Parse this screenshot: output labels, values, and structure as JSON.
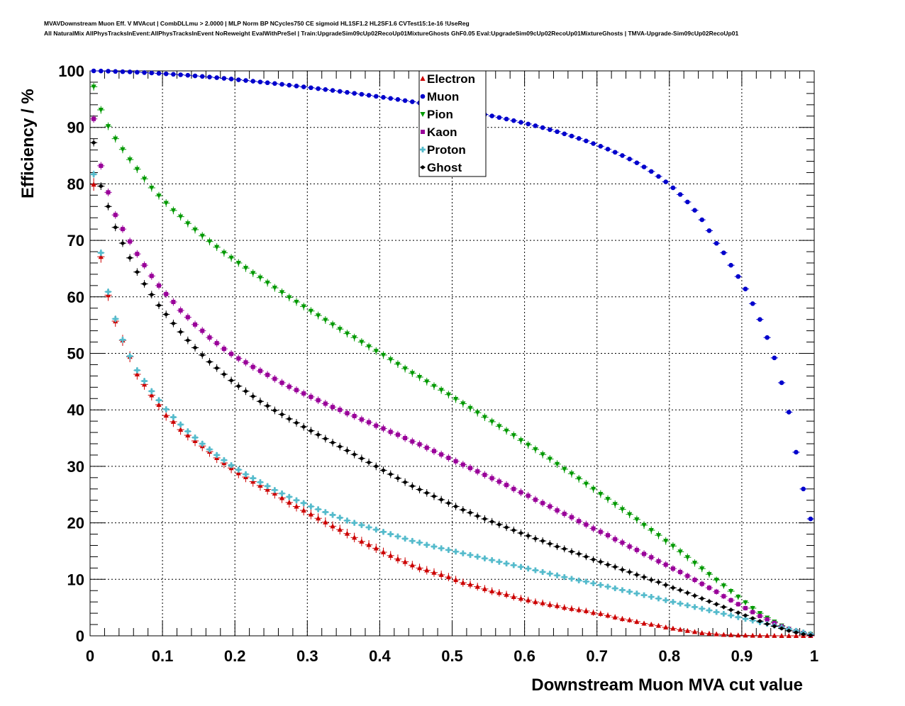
{
  "header": {
    "line1": "MVAVDownstream Muon Eff. V MVAcut | CombDLLmu > 2.0000 | MLP Norm BP NCycles750 CE sigmoid HL1SF1.2 HL2SF1.6 CVTest15:1e-16 !UseReg",
    "line2": "All NaturalMix AllPhysTracksInEvent:AllPhysTracksInEvent NoReweight EvalWithPreSel | Train:UpgradeSim09cUp02RecoUp01MixtureGhosts GhF0.05 Eval:UpgradeSim09cUp02RecoUp01MixtureGhosts | TMVA-Upgrade-Sim09cUp02RecoUp01"
  },
  "chart_data": {
    "type": "scatter",
    "xlabel": "Downstream Muon MVA cut value",
    "ylabel": "Efficiency / %",
    "xlim": [
      0,
      1
    ],
    "ylim": [
      0,
      100
    ],
    "x_ticks": [
      "0",
      "0.1",
      "0.2",
      "0.3",
      "0.4",
      "0.5",
      "0.6",
      "0.7",
      "0.8",
      "0.9",
      "1"
    ],
    "y_ticks": [
      "0",
      "10",
      "20",
      "30",
      "40",
      "50",
      "60",
      "70",
      "80",
      "90",
      "100"
    ],
    "grid": true,
    "legend_position": "top-center",
    "x": [
      0.005,
      0.015,
      0.025,
      0.035,
      0.045,
      0.055,
      0.065,
      0.075,
      0.085,
      0.095,
      0.105,
      0.115,
      0.125,
      0.135,
      0.145,
      0.155,
      0.165,
      0.175,
      0.185,
      0.195,
      0.205,
      0.215,
      0.225,
      0.235,
      0.245,
      0.255,
      0.265,
      0.275,
      0.285,
      0.295,
      0.305,
      0.315,
      0.325,
      0.335,
      0.345,
      0.355,
      0.365,
      0.375,
      0.385,
      0.395,
      0.405,
      0.415,
      0.425,
      0.435,
      0.445,
      0.455,
      0.465,
      0.475,
      0.485,
      0.495,
      0.505,
      0.515,
      0.525,
      0.535,
      0.545,
      0.555,
      0.565,
      0.575,
      0.585,
      0.595,
      0.605,
      0.615,
      0.625,
      0.635,
      0.645,
      0.655,
      0.665,
      0.675,
      0.685,
      0.695,
      0.705,
      0.715,
      0.725,
      0.735,
      0.745,
      0.755,
      0.765,
      0.775,
      0.785,
      0.795,
      0.805,
      0.815,
      0.825,
      0.835,
      0.845,
      0.855,
      0.865,
      0.875,
      0.885,
      0.895,
      0.905,
      0.915,
      0.925,
      0.935,
      0.945,
      0.955,
      0.965,
      0.975,
      0.985,
      0.995
    ],
    "series": [
      {
        "name": "Electron",
        "color": "#cc0000",
        "marker": "triangle-up",
        "values": [
          79.9,
          67.1,
          60.3,
          55.7,
          52.3,
          49.4,
          46.3,
          44.5,
          42.6,
          40.9,
          39.0,
          37.9,
          36.5,
          35.5,
          34.5,
          33.6,
          32.6,
          31.5,
          30.6,
          29.7,
          28.8,
          28.1,
          27.3,
          26.6,
          25.9,
          25.2,
          24.4,
          23.6,
          22.9,
          22.2,
          21.5,
          20.8,
          20.1,
          19.4,
          18.8,
          18.1,
          17.4,
          16.7,
          16.1,
          15.5,
          14.8,
          14.2,
          13.6,
          13.1,
          12.5,
          12.0,
          11.6,
          11.2,
          10.8,
          10.4,
          9.9,
          9.4,
          9.1,
          8.7,
          8.3,
          7.9,
          7.6,
          7.3,
          6.9,
          6.6,
          6.3,
          6.0,
          5.8,
          5.5,
          5.3,
          5.0,
          4.8,
          4.6,
          4.4,
          4.1,
          3.9,
          3.6,
          3.3,
          3.0,
          2.8,
          2.5,
          2.2,
          2.0,
          1.8,
          1.5,
          1.3,
          1.1,
          0.9,
          0.7,
          0.5,
          0.4,
          0.3,
          0.2,
          0.15,
          0.1,
          0.08,
          0.05,
          0.03,
          0.02,
          0.01,
          0.0,
          0.0,
          0.0,
          0.0,
          0.0
        ]
      },
      {
        "name": "Muon",
        "color": "#0000cc",
        "marker": "circle",
        "values": [
          100.0,
          99.98,
          99.95,
          99.9,
          99.86,
          99.82,
          99.76,
          99.7,
          99.63,
          99.56,
          99.48,
          99.4,
          99.31,
          99.22,
          99.12,
          99.02,
          98.91,
          98.8,
          98.68,
          98.56,
          98.43,
          98.3,
          98.17,
          98.04,
          97.9,
          97.76,
          97.62,
          97.47,
          97.32,
          97.17,
          97.02,
          96.86,
          96.7,
          96.54,
          96.37,
          96.2,
          96.03,
          95.86,
          95.68,
          95.5,
          95.32,
          95.13,
          94.94,
          94.74,
          94.54,
          94.34,
          94.13,
          93.92,
          93.7,
          93.48,
          93.26,
          93.02,
          92.78,
          92.54,
          92.28,
          92.02,
          91.75,
          91.48,
          91.19,
          90.9,
          90.6,
          90.28,
          89.95,
          89.6,
          89.24,
          88.86,
          88.46,
          88.04,
          87.6,
          87.14,
          86.66,
          86.14,
          85.6,
          85.02,
          84.4,
          83.73,
          83.0,
          82.2,
          81.32,
          80.36,
          79.3,
          78.12,
          76.8,
          75.32,
          73.64,
          71.72,
          69.48,
          67.8,
          65.6,
          63.6,
          61.4,
          58.8,
          56.0,
          52.8,
          49.2,
          44.8,
          39.6,
          32.5,
          26.0,
          20.7
        ]
      },
      {
        "name": "Pion",
        "color": "#009900",
        "marker": "triangle-down",
        "values": [
          97.2,
          93.1,
          90.2,
          88.0,
          86.1,
          84.3,
          82.6,
          80.9,
          79.3,
          77.9,
          76.6,
          75.3,
          74.2,
          73.0,
          71.9,
          70.8,
          69.8,
          68.8,
          67.8,
          66.9,
          66.0,
          65.1,
          64.2,
          63.4,
          62.5,
          61.6,
          60.8,
          59.9,
          59.1,
          58.3,
          57.5,
          56.7,
          55.9,
          55.1,
          54.3,
          53.5,
          52.8,
          52.0,
          51.2,
          50.4,
          49.7,
          48.9,
          48.1,
          47.3,
          46.5,
          45.8,
          45.0,
          44.2,
          43.5,
          42.7,
          41.9,
          41.1,
          40.3,
          39.5,
          38.7,
          37.9,
          37.1,
          36.3,
          35.5,
          34.6,
          33.8,
          33.0,
          32.1,
          31.3,
          30.4,
          29.5,
          28.7,
          27.8,
          26.9,
          26.0,
          25.1,
          24.2,
          23.3,
          22.4,
          21.5,
          20.6,
          19.6,
          18.7,
          17.8,
          16.8,
          15.9,
          14.9,
          13.9,
          12.9,
          11.9,
          10.9,
          9.9,
          8.9,
          7.9,
          6.9,
          5.9,
          4.9,
          4.0,
          3.2,
          2.5,
          1.8,
          1.2,
          0.8,
          0.5,
          0.3
        ]
      },
      {
        "name": "Kaon",
        "color": "#990099",
        "marker": "square",
        "values": [
          91.5,
          83.2,
          78.5,
          74.5,
          72.0,
          69.8,
          67.6,
          65.6,
          63.7,
          62.0,
          60.5,
          59.1,
          57.6,
          56.4,
          55.1,
          54.0,
          52.8,
          51.8,
          50.8,
          49.9,
          49.1,
          48.4,
          47.6,
          46.9,
          46.2,
          45.5,
          44.8,
          44.1,
          43.5,
          42.9,
          42.3,
          41.7,
          41.1,
          40.5,
          40.0,
          39.4,
          38.9,
          38.3,
          37.8,
          37.2,
          36.7,
          36.1,
          35.6,
          35.0,
          34.4,
          33.9,
          33.3,
          32.7,
          32.1,
          31.5,
          30.9,
          30.3,
          29.7,
          29.1,
          28.5,
          27.9,
          27.3,
          26.7,
          26.0,
          25.4,
          24.8,
          24.1,
          23.5,
          22.9,
          22.2,
          21.6,
          21.0,
          20.3,
          19.7,
          19.0,
          18.4,
          17.8,
          17.1,
          16.5,
          15.8,
          15.2,
          14.5,
          13.9,
          13.2,
          12.6,
          11.9,
          11.3,
          10.6,
          9.9,
          9.2,
          8.5,
          7.8,
          7.0,
          6.3,
          5.6,
          4.9,
          4.2,
          3.5,
          2.9,
          2.3,
          1.7,
          1.2,
          0.8,
          0.5,
          0.2
        ]
      },
      {
        "name": "Proton",
        "color": "#55bbcc",
        "marker": "cross",
        "values": [
          81.7,
          67.8,
          60.9,
          56.1,
          52.4,
          49.5,
          47.0,
          45.1,
          43.3,
          41.7,
          40.1,
          38.7,
          37.4,
          36.2,
          35.1,
          34.0,
          33.0,
          32.0,
          31.1,
          30.2,
          29.4,
          28.6,
          27.9,
          27.2,
          26.5,
          25.8,
          25.2,
          24.6,
          24.0,
          23.5,
          22.9,
          22.4,
          21.9,
          21.4,
          20.9,
          20.4,
          20.0,
          19.6,
          19.2,
          18.8,
          18.4,
          18.0,
          17.6,
          17.2,
          16.8,
          16.5,
          16.1,
          15.8,
          15.5,
          15.2,
          14.9,
          14.6,
          14.3,
          14.0,
          13.7,
          13.4,
          13.1,
          12.8,
          12.5,
          12.2,
          11.9,
          11.6,
          11.3,
          11.0,
          10.7,
          10.4,
          10.1,
          9.8,
          9.6,
          9.3,
          9.0,
          8.7,
          8.4,
          8.1,
          7.8,
          7.5,
          7.2,
          6.9,
          6.6,
          6.3,
          6.0,
          5.7,
          5.4,
          5.1,
          4.8,
          4.5,
          4.2,
          3.9,
          3.6,
          3.3,
          3.0,
          2.7,
          2.4,
          2.1,
          1.8,
          1.5,
          1.2,
          0.9,
          0.6,
          0.3
        ]
      },
      {
        "name": "Ghost",
        "color": "#000000",
        "marker": "diamond",
        "values": [
          87.3,
          79.6,
          76.0,
          72.3,
          69.5,
          66.9,
          64.4,
          62.3,
          60.4,
          58.5,
          56.9,
          55.3,
          53.8,
          52.3,
          51.0,
          49.7,
          48.5,
          47.4,
          46.3,
          45.2,
          44.2,
          43.3,
          42.4,
          41.5,
          40.7,
          39.9,
          39.2,
          38.4,
          37.7,
          37.0,
          36.3,
          35.6,
          34.9,
          34.2,
          33.5,
          32.8,
          32.1,
          31.4,
          30.7,
          30.0,
          29.3,
          28.6,
          27.9,
          27.2,
          26.5,
          25.9,
          25.3,
          24.7,
          24.1,
          23.5,
          22.9,
          22.3,
          21.8,
          21.2,
          20.7,
          20.2,
          19.7,
          19.2,
          18.7,
          18.2,
          17.7,
          17.2,
          16.8,
          16.3,
          15.8,
          15.4,
          14.9,
          14.5,
          14.0,
          13.5,
          13.1,
          12.6,
          12.2,
          11.7,
          11.3,
          10.8,
          10.4,
          9.9,
          9.5,
          9.0,
          8.5,
          8.1,
          7.6,
          7.1,
          6.6,
          6.1,
          5.6,
          5.1,
          4.6,
          4.1,
          3.6,
          3.1,
          2.6,
          2.1,
          1.7,
          1.3,
          0.9,
          0.6,
          0.3,
          0.1
        ]
      }
    ]
  }
}
